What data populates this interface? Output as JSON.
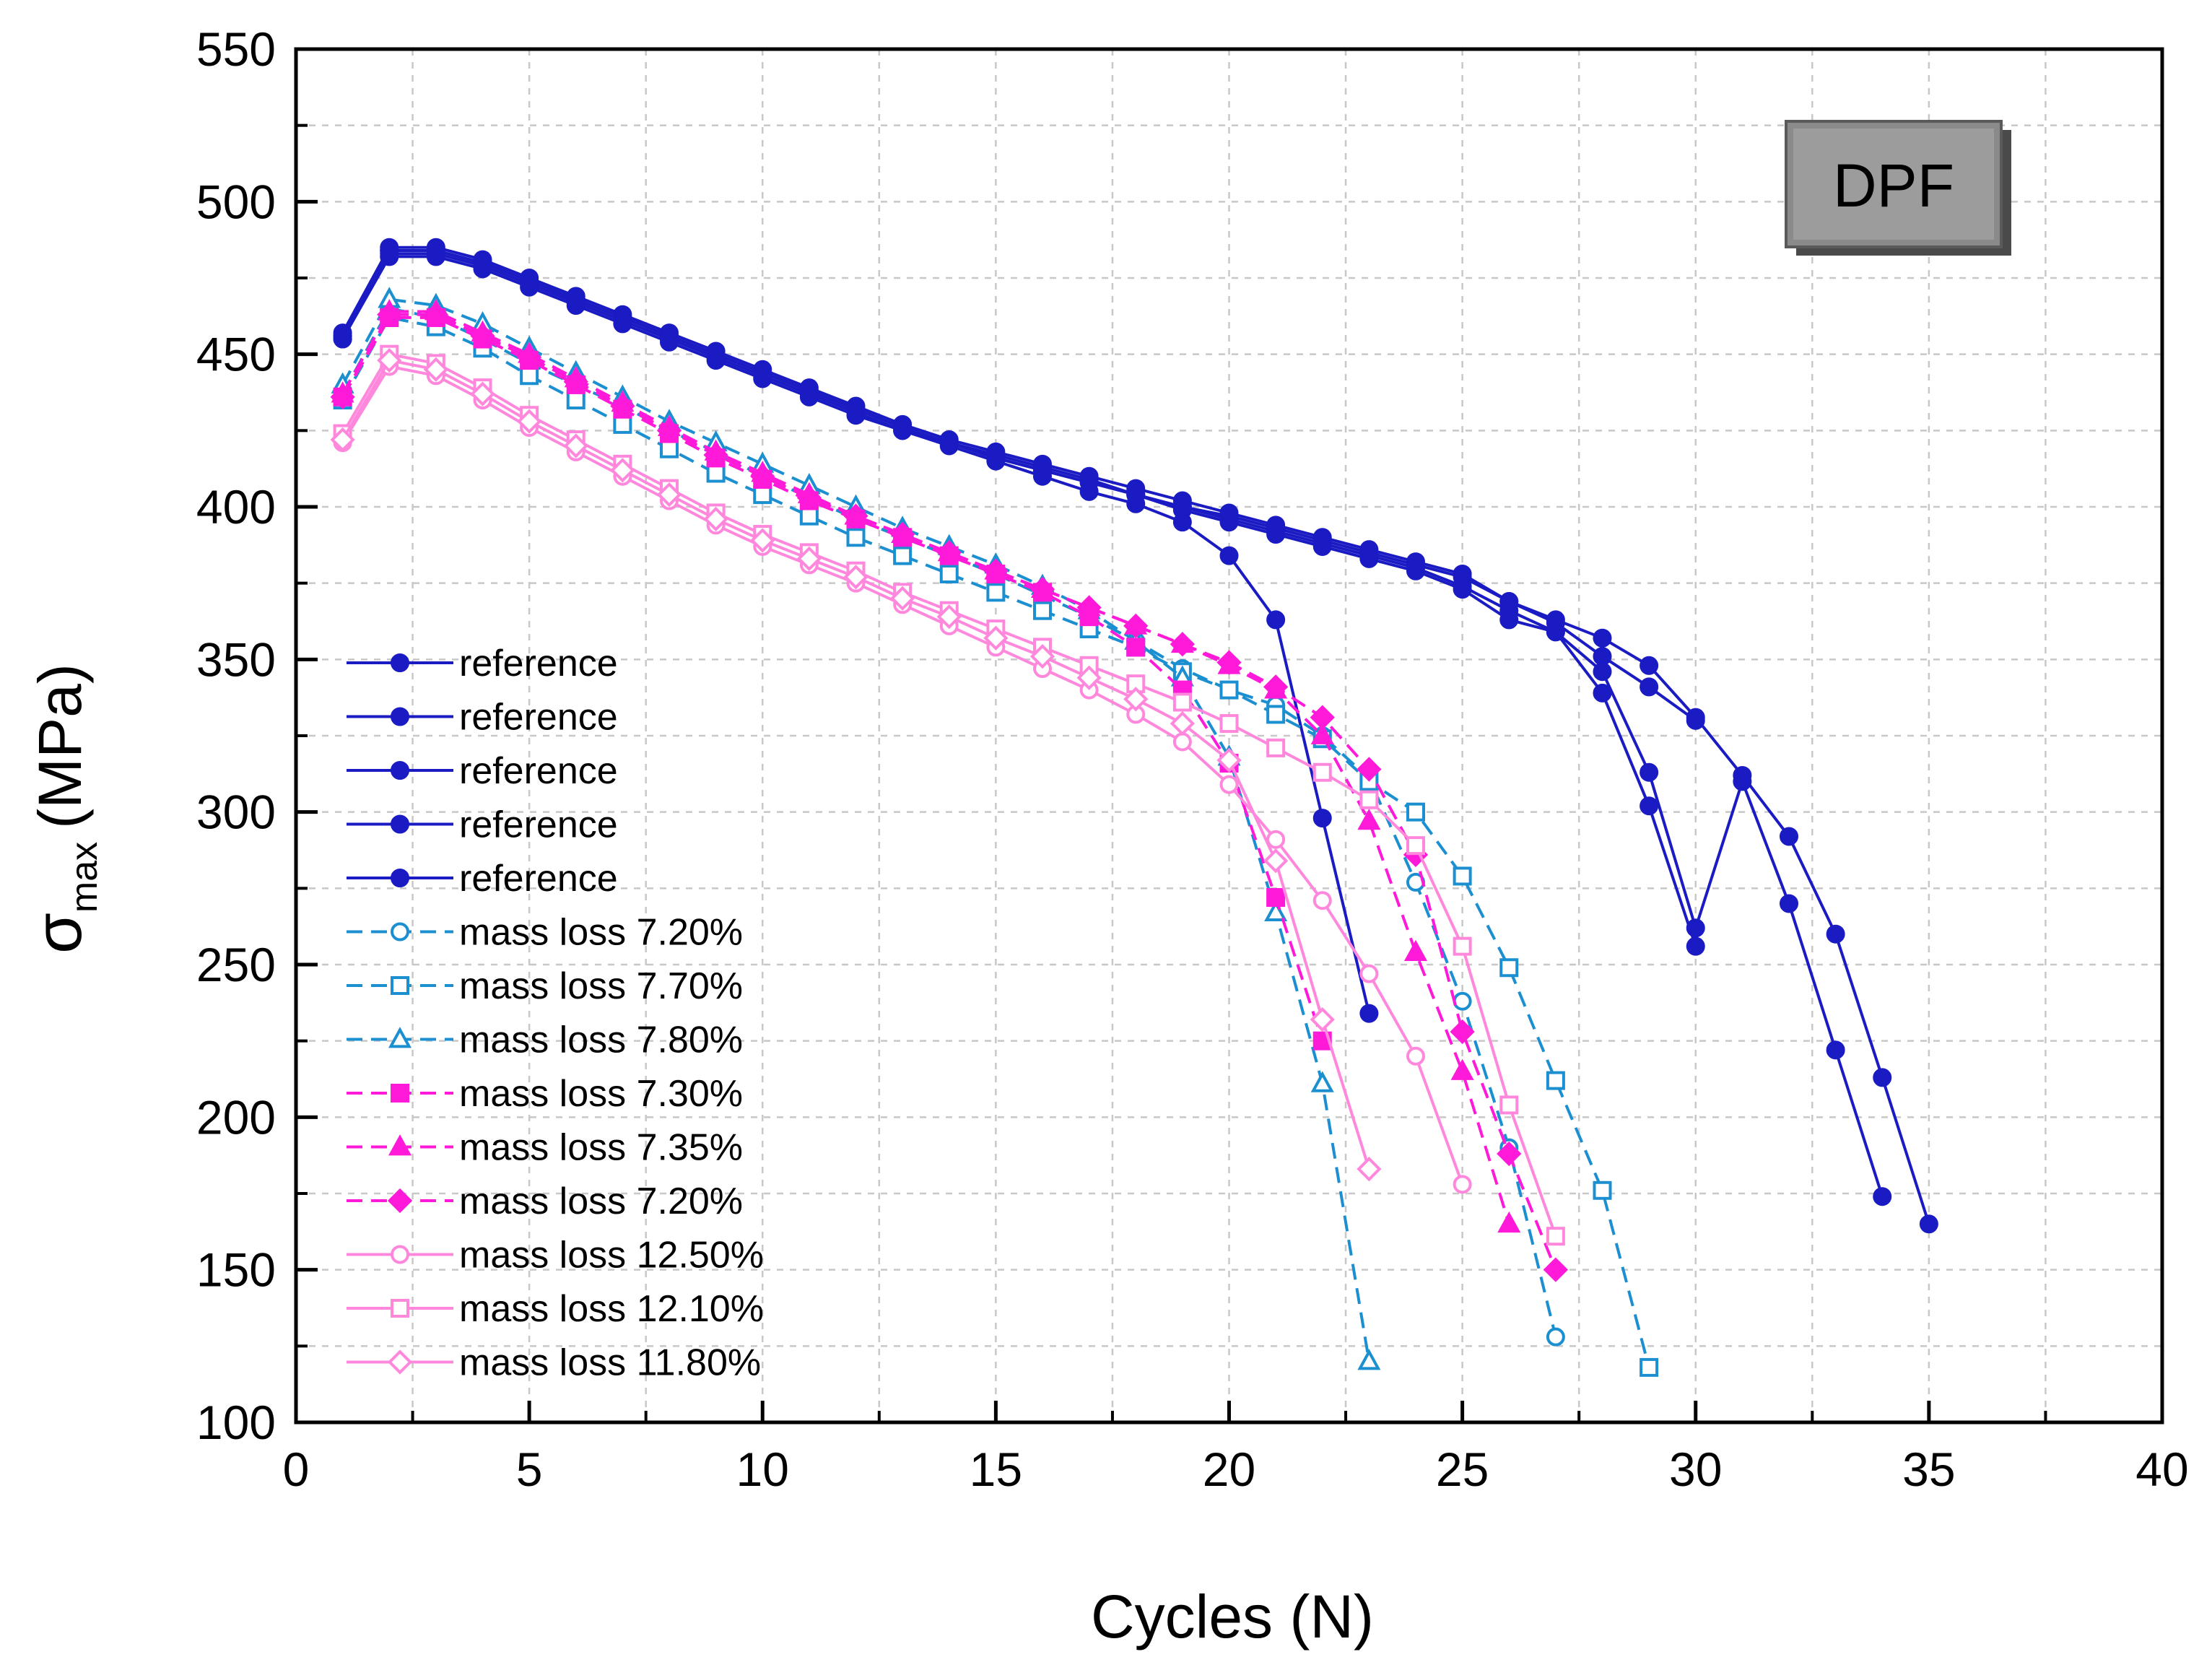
{
  "chart_data": {
    "type": "line",
    "title": "",
    "badge": "DPF",
    "xlabel": "Cycles (N)",
    "ylabel_symbol": "σ",
    "ylabel_sub": "max",
    "ylabel_unit": "(MPa)",
    "xlim": [
      0,
      40
    ],
    "ylim": [
      100,
      550
    ],
    "xticks": [
      0,
      5,
      10,
      15,
      20,
      25,
      30,
      35,
      40
    ],
    "yticks": [
      100,
      150,
      200,
      250,
      300,
      350,
      400,
      450,
      500,
      550
    ],
    "grid": true,
    "legend_position": "lower-left",
    "series": [
      {
        "name": "reference",
        "color": "#1b1bc4",
        "line": "solid",
        "marker": "circle",
        "fill": true,
        "x": [
          1,
          2,
          3,
          4,
          5,
          6,
          7,
          8,
          9,
          10,
          11,
          12,
          13,
          14,
          15,
          16,
          17,
          18,
          19,
          20,
          21,
          22,
          23
        ],
        "y": [
          455,
          482,
          482,
          478,
          472,
          466,
          460,
          454,
          448,
          442,
          436,
          430,
          425,
          420,
          415,
          410,
          405,
          401,
          395,
          384,
          363,
          298,
          234
        ]
      },
      {
        "name": "reference",
        "color": "#1b1bc4",
        "line": "solid",
        "marker": "circle",
        "fill": true,
        "x": [
          1,
          2,
          3,
          4,
          5,
          6,
          7,
          8,
          9,
          10,
          11,
          12,
          13,
          14,
          15,
          16,
          17,
          18,
          19,
          20,
          21,
          22,
          23,
          24,
          25,
          26,
          27,
          28,
          29,
          30
        ],
        "y": [
          456,
          484,
          484,
          480,
          474,
          468,
          462,
          456,
          450,
          444,
          438,
          432,
          426,
          421,
          416,
          412,
          408,
          404,
          400,
          397,
          393,
          389,
          385,
          381,
          377,
          369,
          362,
          351,
          341,
          330
        ]
      },
      {
        "name": "reference",
        "color": "#1b1bc4",
        "line": "solid",
        "marker": "circle",
        "fill": true,
        "x": [
          1,
          2,
          3,
          4,
          5,
          6,
          7,
          8,
          9,
          10,
          11,
          12,
          13,
          14,
          15,
          16,
          17,
          18,
          19,
          20,
          21,
          22,
          23,
          24,
          25,
          26,
          27,
          28,
          29,
          30,
          31,
          32,
          33,
          34,
          35
        ],
        "y": [
          457,
          485,
          485,
          481,
          475,
          469,
          463,
          457,
          451,
          445,
          439,
          433,
          427,
          422,
          418,
          414,
          410,
          406,
          402,
          398,
          394,
          390,
          386,
          382,
          378,
          369,
          363,
          357,
          348,
          331,
          312,
          292,
          260,
          213,
          165
        ]
      },
      {
        "name": "reference",
        "color": "#1b1bc4",
        "line": "solid",
        "marker": "circle",
        "fill": true,
        "x": [
          1,
          2,
          3,
          4,
          5,
          6,
          7,
          8,
          9,
          10,
          11,
          12,
          13,
          14,
          15,
          16,
          17,
          18,
          19,
          20,
          21,
          22,
          23,
          24,
          25,
          26,
          27,
          28,
          29,
          30
        ],
        "y": [
          455,
          483,
          483,
          479,
          473,
          467,
          461,
          455,
          449,
          443,
          437,
          431,
          425,
          421,
          417,
          413,
          409,
          404,
          399,
          395,
          391,
          387,
          383,
          379,
          373,
          363,
          359,
          339,
          302,
          256
        ]
      },
      {
        "name": "reference",
        "color": "#1b1bc4",
        "line": "solid",
        "marker": "circle",
        "fill": true,
        "x": [
          1,
          2,
          3,
          4,
          5,
          6,
          7,
          8,
          9,
          10,
          11,
          12,
          13,
          14,
          15,
          16,
          17,
          18,
          19,
          20,
          21,
          22,
          23,
          24,
          25,
          26,
          27,
          28,
          29,
          30,
          31,
          32,
          33,
          34
        ],
        "y": [
          456,
          484,
          484,
          480,
          474,
          468,
          462,
          456,
          450,
          444,
          438,
          432,
          426,
          421,
          416,
          412,
          408,
          404,
          400,
          396,
          392,
          388,
          384,
          380,
          374,
          366,
          359,
          346,
          313,
          262,
          310,
          270,
          222,
          174
        ]
      },
      {
        "name": "mass loss 7.20%",
        "color": "#1c8fd0",
        "line": "dashed",
        "marker": "circle",
        "fill": false,
        "x": [
          1,
          2,
          3,
          4,
          5,
          6,
          7,
          8,
          9,
          10,
          11,
          12,
          13,
          14,
          15,
          16,
          17,
          18,
          19,
          20,
          21,
          22,
          23,
          24,
          25,
          26,
          27
        ],
        "y": [
          437,
          465,
          462,
          455,
          447,
          440,
          433,
          425,
          418,
          410,
          403,
          396,
          390,
          384,
          378,
          371,
          364,
          356,
          347,
          340,
          335,
          325,
          311,
          277,
          238,
          190,
          128
        ]
      },
      {
        "name": "mass loss 7.70%",
        "color": "#1c8fd0",
        "line": "dashed",
        "marker": "square",
        "fill": false,
        "x": [
          1,
          2,
          3,
          4,
          5,
          6,
          7,
          8,
          9,
          10,
          11,
          12,
          13,
          14,
          15,
          16,
          17,
          18,
          19,
          20,
          21,
          22,
          23,
          24,
          25,
          26,
          27,
          28,
          29
        ],
        "y": [
          435,
          462,
          459,
          452,
          443,
          435,
          427,
          419,
          411,
          404,
          397,
          390,
          384,
          378,
          372,
          366,
          360,
          354,
          346,
          340,
          332,
          324,
          310,
          300,
          279,
          249,
          212,
          176,
          118
        ]
      },
      {
        "name": "mass loss 7.80%",
        "color": "#1c8fd0",
        "line": "dashed",
        "marker": "triangle",
        "fill": false,
        "x": [
          1,
          2,
          3,
          4,
          5,
          6,
          7,
          8,
          9,
          10,
          11,
          12,
          13,
          14,
          15,
          16,
          17,
          18,
          19,
          20,
          21,
          22,
          23
        ],
        "y": [
          440,
          468,
          466,
          460,
          452,
          444,
          436,
          428,
          421,
          414,
          407,
          400,
          393,
          387,
          381,
          374,
          366,
          356,
          344,
          318,
          267,
          211,
          120
        ]
      },
      {
        "name": "mass loss 7.30%",
        "color": "#ff1ad9",
        "line": "dashed",
        "marker": "square",
        "fill": true,
        "x": [
          1,
          2,
          3,
          4,
          5,
          6,
          7,
          8,
          9,
          10,
          11,
          12,
          13,
          14,
          15,
          16,
          17,
          18,
          19,
          20,
          21,
          22
        ],
        "y": [
          436,
          462,
          462,
          455,
          448,
          440,
          432,
          424,
          416,
          409,
          402,
          396,
          390,
          384,
          378,
          372,
          364,
          354,
          340,
          316,
          272,
          225
        ]
      },
      {
        "name": "mass loss 7.35%",
        "color": "#ff1ad9",
        "line": "dashed",
        "marker": "triangle",
        "fill": true,
        "x": [
          1,
          2,
          3,
          4,
          5,
          6,
          7,
          8,
          9,
          10,
          11,
          12,
          13,
          14,
          15,
          16,
          17,
          18,
          19,
          20,
          21,
          22,
          23,
          24,
          25,
          26
        ],
        "y": [
          437,
          464,
          464,
          457,
          450,
          442,
          434,
          426,
          418,
          411,
          404,
          397,
          391,
          385,
          379,
          373,
          367,
          361,
          355,
          348,
          340,
          325,
          297,
          254,
          215,
          165
        ]
      },
      {
        "name": "mass loss 7.20%",
        "color": "#ff1ad9",
        "line": "dashed",
        "marker": "diamond",
        "fill": true,
        "x": [
          1,
          2,
          3,
          4,
          5,
          6,
          7,
          8,
          9,
          10,
          11,
          12,
          13,
          14,
          15,
          16,
          17,
          18,
          19,
          20,
          21,
          22,
          23,
          24,
          25,
          26,
          27
        ],
        "y": [
          436,
          463,
          463,
          456,
          449,
          441,
          433,
          425,
          417,
          410,
          403,
          397,
          391,
          385,
          379,
          373,
          367,
          361,
          355,
          349,
          341,
          331,
          314,
          286,
          228,
          188,
          150
        ]
      },
      {
        "name": "mass loss 12.50%",
        "color": "#ff88dd",
        "line": "solid",
        "marker": "circle",
        "fill": false,
        "x": [
          1,
          2,
          3,
          4,
          5,
          6,
          7,
          8,
          9,
          10,
          11,
          12,
          13,
          14,
          15,
          16,
          17,
          18,
          19,
          20,
          21,
          22,
          23,
          24,
          25
        ],
        "y": [
          421,
          446,
          443,
          435,
          426,
          418,
          410,
          402,
          394,
          387,
          381,
          375,
          368,
          361,
          354,
          347,
          340,
          332,
          323,
          309,
          291,
          271,
          247,
          220,
          178
        ]
      },
      {
        "name": "mass loss 12.10%",
        "color": "#ff88dd",
        "line": "solid",
        "marker": "square",
        "fill": false,
        "x": [
          1,
          2,
          3,
          4,
          5,
          6,
          7,
          8,
          9,
          10,
          11,
          12,
          13,
          14,
          15,
          16,
          17,
          18,
          19,
          20,
          21,
          22,
          23,
          24,
          25,
          26,
          27
        ],
        "y": [
          424,
          450,
          447,
          439,
          430,
          422,
          414,
          406,
          398,
          391,
          385,
          379,
          372,
          366,
          360,
          354,
          348,
          342,
          336,
          329,
          321,
          313,
          304,
          289,
          256,
          204,
          161
        ]
      },
      {
        "name": "mass loss 11.80%",
        "color": "#ff88dd",
        "line": "solid",
        "marker": "diamond",
        "fill": false,
        "x": [
          1,
          2,
          3,
          4,
          5,
          6,
          7,
          8,
          9,
          10,
          11,
          12,
          13,
          14,
          15,
          16,
          17,
          18,
          19,
          20,
          21,
          22,
          23
        ],
        "y": [
          422,
          448,
          445,
          437,
          428,
          420,
          412,
          404,
          396,
          389,
          383,
          377,
          370,
          364,
          357,
          351,
          344,
          337,
          329,
          317,
          284,
          232,
          183
        ]
      }
    ]
  }
}
